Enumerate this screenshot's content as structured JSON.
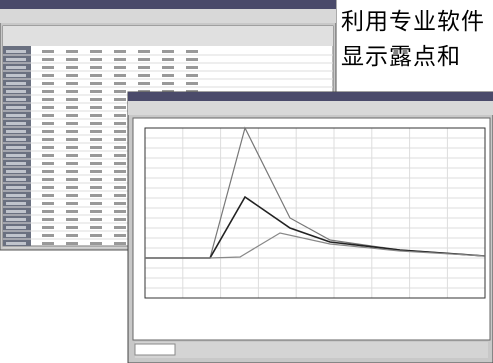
{
  "caption": {
    "line1": "利用专业软件",
    "line2": "显示露点和"
  }
}
